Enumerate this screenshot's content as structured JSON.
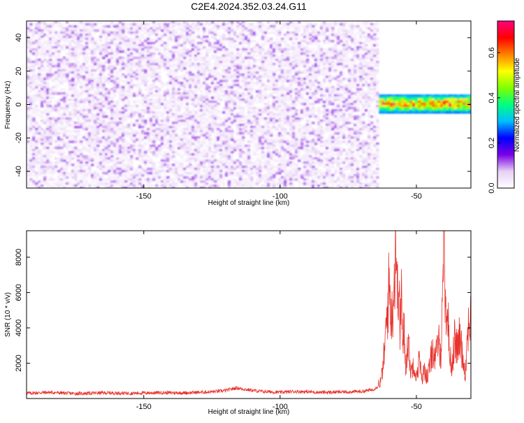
{
  "title": "C2E4.2024.352.03.24.G11",
  "colors": {
    "series": "#e8322c",
    "frame": "#000000",
    "background": "#ffffff"
  },
  "chart_data": [
    {
      "type": "heatmap",
      "xlabel": "Height of straight line (km)",
      "ylabel": "Frequency (Hz)",
      "xlim": [
        -193,
        -30
      ],
      "ylim": [
        -50,
        50
      ],
      "xticks": [
        -150,
        -100,
        -50
      ],
      "yticks": [
        -40,
        -20,
        0,
        20,
        40
      ],
      "colorbar": {
        "label": "Normalized spectral amplitude",
        "range": [
          0,
          0.74
        ],
        "ticks": [
          0.0,
          0.2,
          0.4,
          0.6
        ],
        "colormap": [
          "#ffffff",
          "#e6d0f5",
          "#7a00e6",
          "#0000ff",
          "#00bfff",
          "#00ff7f",
          "#80ff00",
          "#ffff00",
          "#ff8000",
          "#ff0000",
          "#ff0080"
        ]
      },
      "regions": [
        {
          "name": "broadband noise",
          "x_range": [
            -193,
            -64
          ],
          "freq_range": [
            -50,
            50
          ],
          "amplitude": [
            0.0,
            0.12
          ]
        },
        {
          "name": "signal band",
          "x_range": [
            -64,
            -30
          ],
          "freq_range": [
            -5,
            6
          ],
          "amplitude": [
            0.25,
            0.72
          ]
        }
      ]
    },
    {
      "type": "line",
      "xlabel": "Height of straight line (km)",
      "ylabel": "SNR (10 * v/v)",
      "xlim": [
        -193,
        -30
      ],
      "ylim": [
        0,
        9500
      ],
      "xticks": [
        -150,
        -100,
        -50
      ],
      "yticks": [
        2000,
        4000,
        6000,
        8000
      ],
      "x": [
        -193,
        -185,
        -175,
        -165,
        -155,
        -145,
        -135,
        -125,
        -120,
        -116,
        -112,
        -108,
        -104,
        -100,
        -95,
        -90,
        -85,
        -80,
        -75,
        -70,
        -66,
        -63,
        -62,
        -61,
        -60,
        -59,
        -58,
        -57.5,
        -57,
        -56.5,
        -56,
        -55.5,
        -55,
        -54.5,
        -54,
        -53,
        -52,
        -51,
        -50,
        -49,
        -48,
        -47,
        -46,
        -45,
        -44,
        -43,
        -42,
        -41,
        -40.5,
        -40,
        -39.5,
        -39,
        -38.5,
        -38,
        -37,
        -36,
        -35,
        -34,
        -33,
        -32,
        -31,
        -30
      ],
      "values": [
        300,
        350,
        280,
        320,
        300,
        330,
        320,
        380,
        450,
        600,
        500,
        420,
        380,
        350,
        400,
        380,
        350,
        360,
        380,
        400,
        500,
        800,
        1800,
        3500,
        5500,
        3800,
        6000,
        8100,
        4500,
        6200,
        3000,
        5600,
        2000,
        3600,
        1500,
        2800,
        1200,
        1800,
        1000,
        1900,
        900,
        1400,
        1000,
        1600,
        2400,
        1800,
        2800,
        2200,
        4200,
        9400,
        5800,
        3200,
        4600,
        2400,
        1500,
        2800,
        2400,
        3000,
        2000,
        1200,
        3600,
        3800
      ]
    }
  ]
}
